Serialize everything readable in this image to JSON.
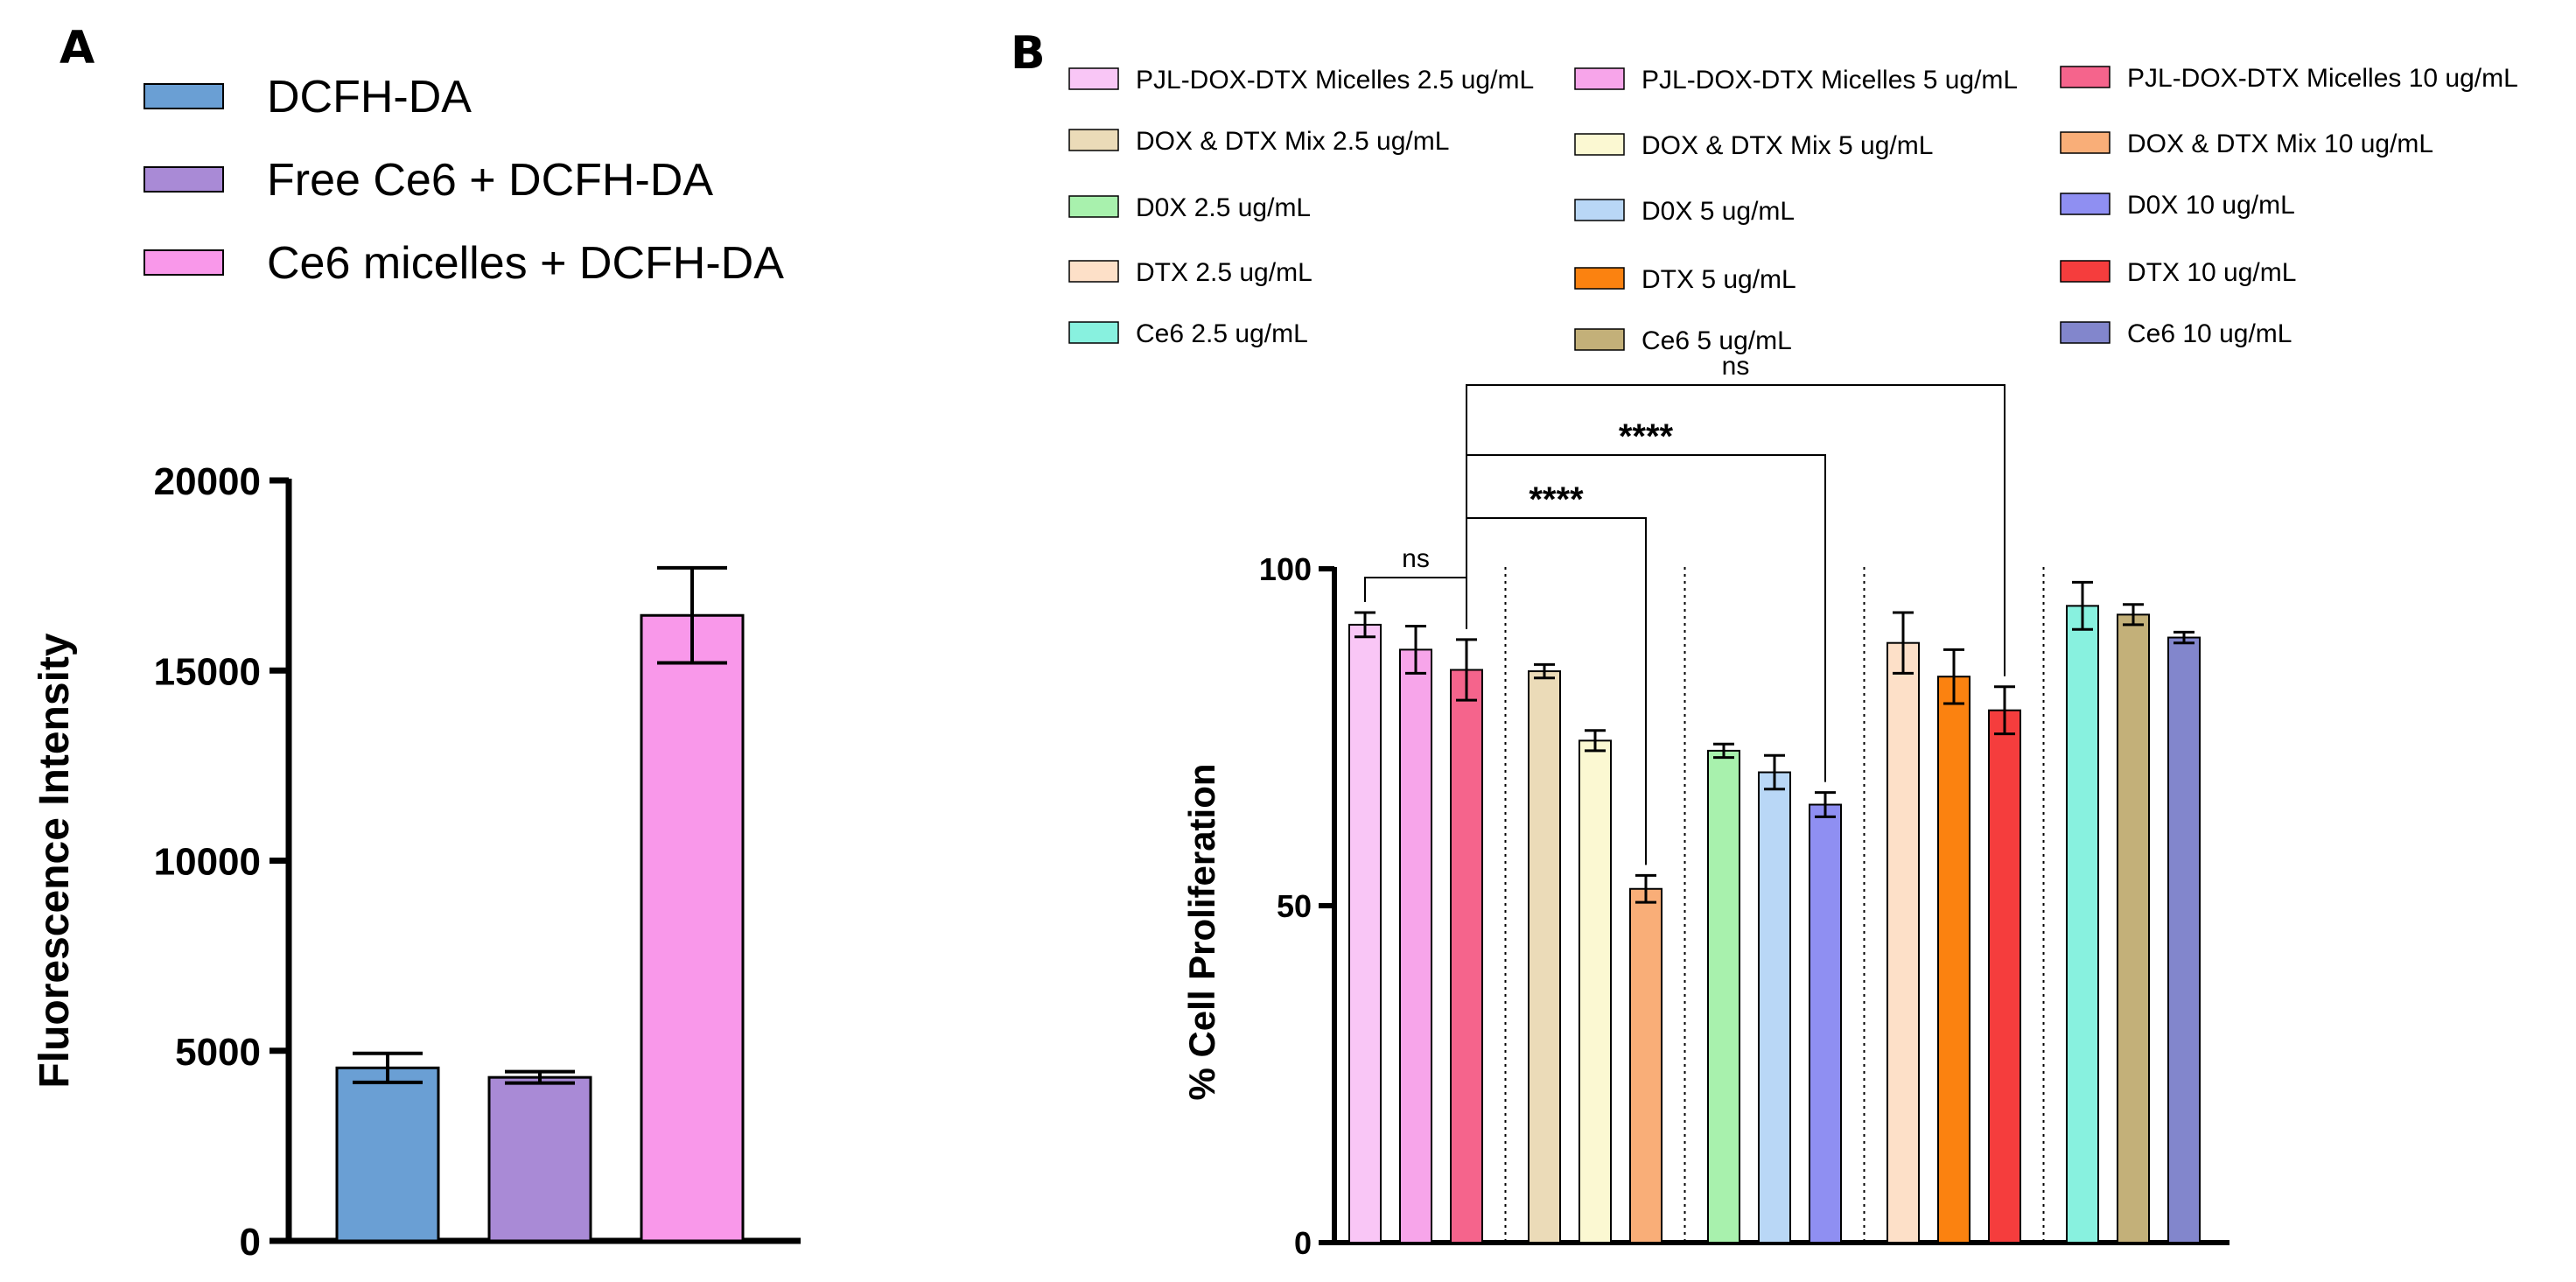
{
  "panels": {
    "a": {
      "label": "A"
    },
    "b": {
      "label": "B"
    }
  },
  "chart_data": [
    {
      "id": "A",
      "type": "bar",
      "title": "",
      "xlabel": "",
      "ylabel": "Fluorescence Intensity",
      "ylim": [
        0,
        20000
      ],
      "yticks": [
        0,
        5000,
        10000,
        15000,
        20000
      ],
      "categories": [
        "DCFH-DA",
        "Free Ce6 + DCFH-DA",
        "Ce6 micelles + DCFH-DA"
      ],
      "values": [
        4550,
        4300,
        16450
      ],
      "errors": [
        380,
        150,
        1250
      ],
      "colors": [
        "#6a9fd4",
        "#a98ad6",
        "#f998ea"
      ],
      "legend": {
        "placement": "top-left",
        "entries": [
          "DCFH-DA",
          "Free Ce6 + DCFH-DA",
          "Ce6 micelles + DCFH-DA"
        ]
      }
    },
    {
      "id": "B",
      "type": "bar",
      "title": "",
      "xlabel": "",
      "ylabel": "% Cell Proliferation",
      "ylim": [
        0,
        100
      ],
      "yticks": [
        0,
        50,
        100
      ],
      "groups": [
        {
          "name": "PJL-DOX-DTX Micelles",
          "bars": [
            {
              "label": "PJL-DOX-DTX Micelles 2.5 ug/mL",
              "value": 91.7,
              "error": 1.8,
              "color": "#f9c6f6"
            },
            {
              "label": "PJL-DOX-DTX Micelles 5 ug/mL",
              "value": 88.0,
              "error": 3.5,
              "color": "#f7a5ea"
            },
            {
              "label": "PJL-DOX-DTX Micelles 10 ug/mL",
              "value": 85.0,
              "error": 4.5,
              "color": "#f5648c"
            }
          ]
        },
        {
          "name": "DOX & DTX Mix",
          "bars": [
            {
              "label": "DOX & DTX Mix 2.5 ug/mL",
              "value": 84.8,
              "error": 1.0,
              "color": "#ebdbb8"
            },
            {
              "label": "DOX & DTX Mix 5 ug/mL",
              "value": 74.5,
              "error": 1.5,
              "color": "#fbf8d2"
            },
            {
              "label": "DOX & DTX Mix 10 ug/mL",
              "value": 52.5,
              "error": 2.0,
              "color": "#f9ae78"
            }
          ]
        },
        {
          "name": "D0X",
          "bars": [
            {
              "label": "D0X 2.5 ug/mL",
              "value": 73.0,
              "error": 1.0,
              "color": "#a8f1ad"
            },
            {
              "label": "D0X 5 ug/mL",
              "value": 69.8,
              "error": 2.5,
              "color": "#b9d7f6"
            },
            {
              "label": "D0X 10 ug/mL",
              "value": 65.0,
              "error": 1.8,
              "color": "#8f8ff2"
            }
          ]
        },
        {
          "name": "DTX",
          "bars": [
            {
              "label": "DTX 2.5 ug/mL",
              "value": 89.0,
              "error": 4.5,
              "color": "#fde0c8"
            },
            {
              "label": "DTX 5 ug/mL",
              "value": 84.0,
              "error": 4.0,
              "color": "#fb8210"
            },
            {
              "label": "DTX 10 ug/mL",
              "value": 79.0,
              "error": 3.5,
              "color": "#f53d3d"
            }
          ]
        },
        {
          "name": "Ce6",
          "bars": [
            {
              "label": "Ce6 2.5 ug/mL",
              "value": 94.5,
              "error": 3.5,
              "color": "#88f1df"
            },
            {
              "label": "Ce6 5 ug/mL",
              "value": 93.2,
              "error": 1.5,
              "color": "#c3b079"
            },
            {
              "label": "Ce6 10 ug/mL",
              "value": 89.8,
              "error": 0.8,
              "color": "#8286cc"
            }
          ]
        }
      ],
      "legend": {
        "placement": "top",
        "columns": [
          [
            "PJL-DOX-DTX Micelles 2.5 ug/mL",
            "DOX & DTX Mix 2.5 ug/mL",
            "D0X 2.5 ug/mL",
            "DTX 2.5 ug/mL",
            "Ce6 2.5 ug/mL"
          ],
          [
            "PJL-DOX-DTX Micelles 5 ug/mL",
            "DOX & DTX Mix 5 ug/mL",
            "D0X 5 ug/mL",
            "DTX 5 ug/mL",
            "Ce6 5 ug/mL"
          ],
          [
            "PJL-DOX-DTX Micelles 10 ug/mL",
            "DOX & DTX Mix 10 ug/mL",
            "D0X 10 ug/mL",
            "DTX 10 ug/mL",
            "Ce6 10 ug/mL"
          ]
        ]
      },
      "significance": [
        {
          "from": "PJL-DOX-DTX Micelles 2.5 ug/mL",
          "to": "PJL-DOX-DTX Micelles 10 ug/mL",
          "label": "ns"
        },
        {
          "from": "PJL-DOX-DTX Micelles 10 ug/mL",
          "to": "DOX & DTX Mix 10 ug/mL",
          "label": "****"
        },
        {
          "from": "PJL-DOX-DTX Micelles 10 ug/mL",
          "to": "D0X 10 ug/mL",
          "label": "****"
        },
        {
          "from": "PJL-DOX-DTX Micelles 10 ug/mL",
          "to": "DTX 10 ug/mL",
          "label": "ns"
        }
      ]
    }
  ]
}
